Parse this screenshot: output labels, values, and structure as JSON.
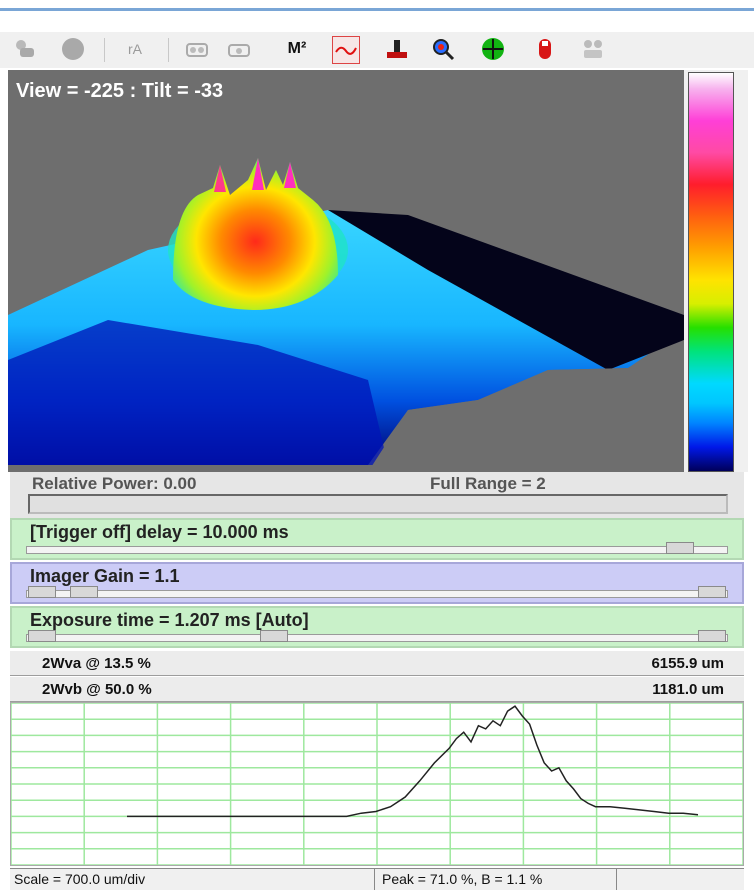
{
  "toolbar": {
    "icons": [
      "layers-icon",
      "circle-icon",
      "ra-icon",
      "camera-icon",
      "camera-alt-icon",
      "m2-icon",
      "profile-curve-icon",
      "stage-icon",
      "zoom-icon",
      "crosshair-icon",
      "red-bulb-icon",
      "faded-cameras-icon"
    ],
    "m2_label": "M²",
    "ra_label": "rA"
  },
  "view3d": {
    "label": "View = -225 : Tilt = -33"
  },
  "status": {
    "relative_power": "Relative Power: 0.00",
    "full_range": "Full Range = 2"
  },
  "controls": {
    "trigger": "[Trigger off] delay = 10.000 ms",
    "gain": "Imager Gain = 1.1",
    "exposure": "Exposure time = 1.207 ms [Auto]"
  },
  "measurements": [
    {
      "label": "2Wva @ 13.5 %",
      "value": "6155.9 um"
    },
    {
      "label": "2Wvb @ 50.0 %",
      "value": "1181.0 um"
    }
  ],
  "footer": {
    "scale": "Scale = 700.0 um/div",
    "peak": "Peak = 71.0 %,  B = 1.1 %"
  },
  "profile": {
    "x_divisions": 10,
    "y_divisions": 10,
    "x": [
      0,
      0.2,
      0.4,
      0.6,
      0.8,
      1.0,
      1.2,
      1.4,
      1.6,
      1.8,
      2.0,
      2.2,
      2.4,
      2.6,
      2.8,
      3.0,
      3.2,
      3.4,
      3.6,
      3.8,
      4.0,
      4.2,
      4.4,
      4.5,
      4.6,
      4.7,
      4.8,
      4.9,
      5.0,
      5.1,
      5.2,
      5.3,
      5.4,
      5.5,
      5.6,
      5.7,
      5.8,
      5.9,
      6.0,
      6.1,
      6.2,
      6.3,
      6.4,
      6.6,
      6.8,
      7.0,
      7.2,
      7.4,
      7.6,
      7.8
    ],
    "y": [
      3,
      3,
      3,
      3,
      3,
      3,
      3,
      3,
      3,
      3,
      3,
      3,
      3,
      3,
      3,
      3,
      3.2,
      3.3,
      3.6,
      4.2,
      5.2,
      6.3,
      7.2,
      7.8,
      8.2,
      7.6,
      8.6,
      8.4,
      8.9,
      8.6,
      9.5,
      9.8,
      9.2,
      8.7,
      7.4,
      6.3,
      5.8,
      6.0,
      5.2,
      4.7,
      4.1,
      3.8,
      3.6,
      3.6,
      3.5,
      3.4,
      3.3,
      3.2,
      3.2,
      3.1
    ],
    "line_color": "#222222",
    "grid_color": "#9ee89e"
  }
}
